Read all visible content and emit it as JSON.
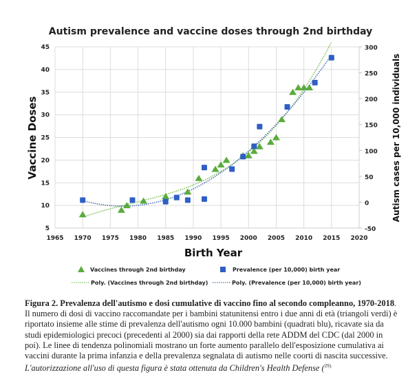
{
  "chart_data": {
    "type": "scatter",
    "title": "Autism prevalence and vaccine doses through 2nd birthday",
    "xlabel": "Birth Year",
    "ylabel": "Vaccine Doses",
    "y2label": "Autism cases per 10,000 individuals",
    "xlim": [
      1965,
      2020
    ],
    "ylim": [
      5,
      45
    ],
    "y2lim": [
      -50,
      300
    ],
    "xticks": [
      "1965",
      "1970",
      "1975",
      "1980",
      "1985",
      "1990",
      "1995",
      "2000",
      "2005",
      "2010",
      "2015",
      "2020"
    ],
    "yticks": [
      "5",
      "10",
      "15",
      "20",
      "25",
      "30",
      "35",
      "40",
      "45"
    ],
    "y2ticks": [
      "-50",
      "0",
      "50",
      "100",
      "150",
      "200",
      "250",
      "300"
    ],
    "grid": true,
    "legend_position": "bottom",
    "series": [
      {
        "name": "Vaccines through 2nd birthday",
        "axis": "left",
        "marker": "triangle",
        "color": "#5aab3c",
        "x": [
          1970,
          1977,
          1978,
          1981,
          1985,
          1989,
          1991,
          1994,
          1995,
          1996,
          1999,
          2000,
          2001,
          2002,
          2004,
          2005,
          2006,
          2008,
          2009,
          2010,
          2011
        ],
        "y": [
          8,
          9,
          10,
          11,
          12,
          13,
          16,
          18,
          19,
          20,
          21,
          21,
          22,
          23,
          24,
          25,
          29,
          35,
          36,
          36,
          36
        ]
      },
      {
        "name": "Prevalence (per 10,000) birth year",
        "axis": "right",
        "marker": "square",
        "color": "#2f5fc4",
        "x": [
          1970,
          1979,
          1985,
          1987,
          1989,
          1992,
          1992,
          1997,
          1999,
          2001,
          2002,
          2007,
          2012,
          2015
        ],
        "y": [
          4,
          4,
          1,
          9,
          4,
          6,
          67,
          64,
          88,
          108,
          146,
          184,
          231,
          279
        ]
      }
    ],
    "trendlines": [
      {
        "name": "Poly. (Vaccines through 2nd birthday)",
        "axis": "left",
        "color": "#7bbf5a",
        "x_range": [
          1970,
          2015
        ]
      },
      {
        "name": "Poly. (Prevalence (per 10,000) birth year)",
        "axis": "right",
        "color": "#4a6fb5",
        "x_range": [
          1970,
          2015
        ]
      }
    ]
  },
  "caption": {
    "bold_lead": "Figura 2. Prevalenza dell'autismo e dosi cumulative di vaccino fino al secondo compleanno, 1970-2018",
    "body": ". Il numero di dosi di vaccino raccomandate per i bambini statunitensi entro i due anni di età (triangoli verdi) è riportato insieme alle stime di prevalenza dell'autismo ogni 10.000 bambini (quadrati blu), ricavate sia da studi epidemiologici precoci (precedenti al 2000) sia dai rapporti della rete ADDM del CDC (dal 2000 in poi). Le linee di tendenza polinomiali mostrano un forte aumento parallelo dell'esposizione cumulativa ai vaccini durante la prima infanzia e della prevalenza segnalata di autismo nelle coorti di nascita successive. ",
    "italic_tail": "L'autorizzazione all'uso di questa figura è stata ottenuta da Children's Health Defense (",
    "ref": "29)."
  }
}
